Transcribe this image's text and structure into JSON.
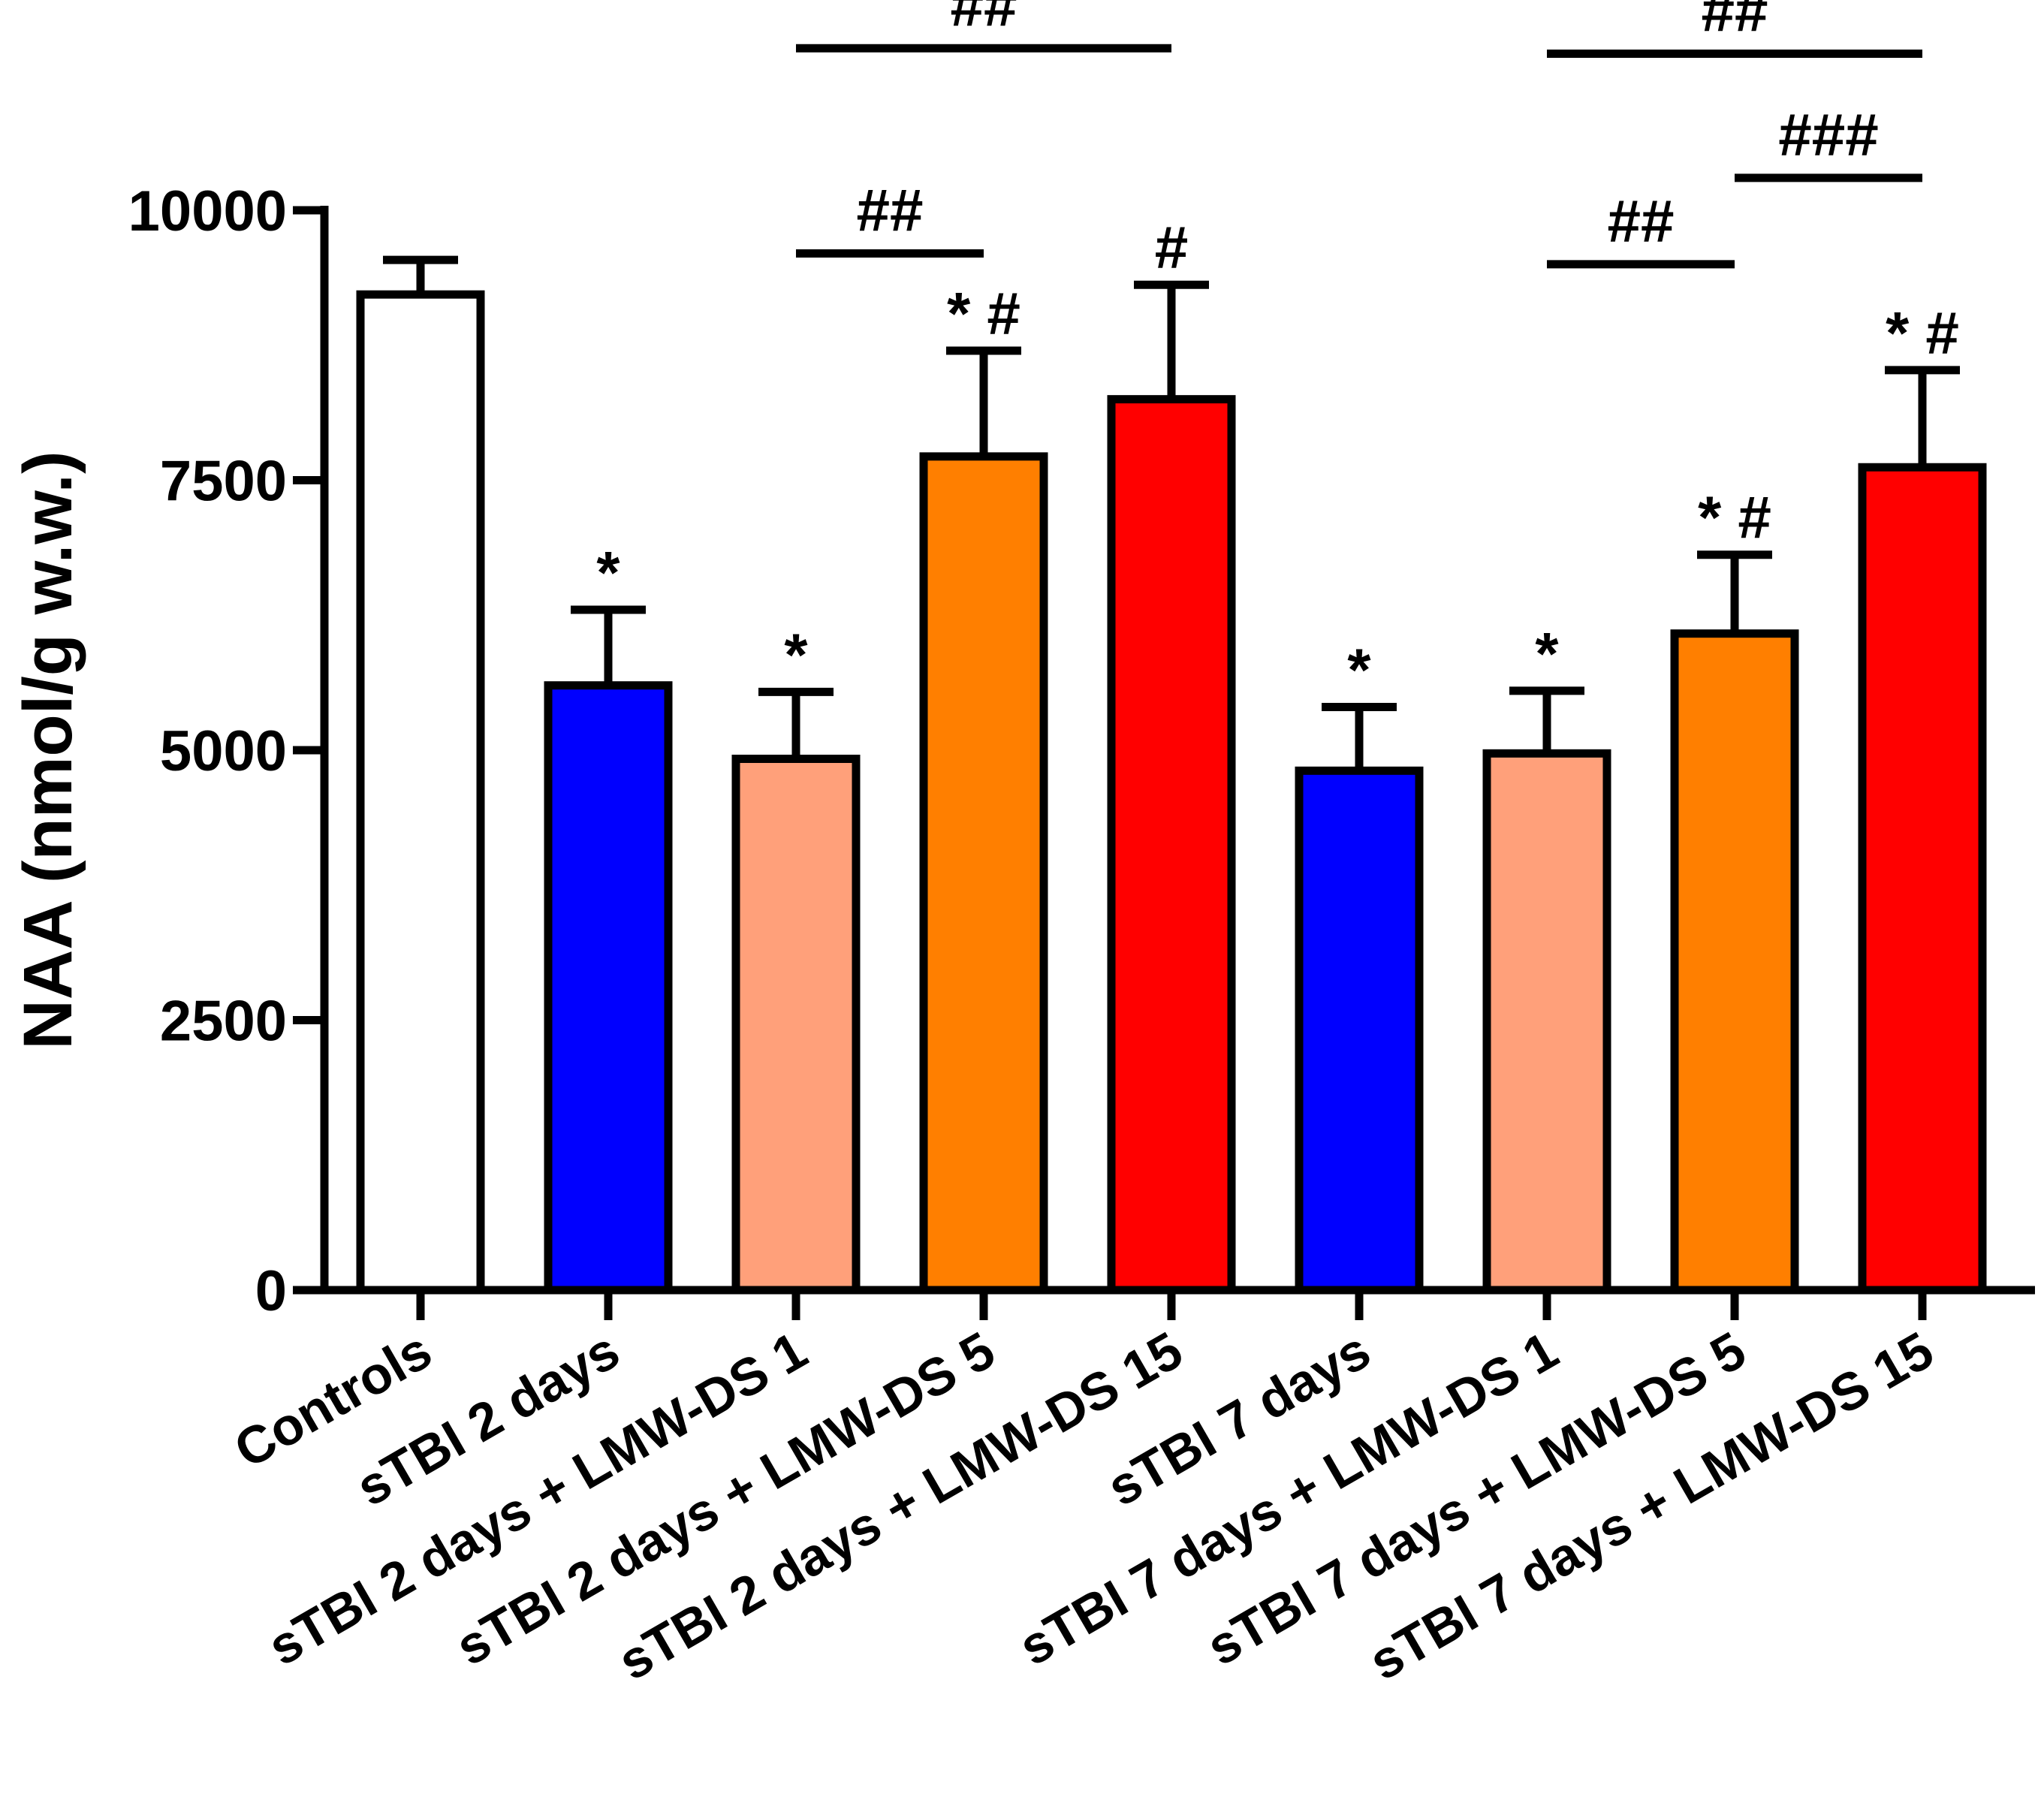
{
  "chart_data": {
    "type": "bar",
    "title": "",
    "xlabel": "",
    "ylabel": "NAA (nmol/g w.w.)",
    "ylim": [
      0,
      10000
    ],
    "yticks": [
      0,
      2500,
      5000,
      7500,
      10000
    ],
    "grid": false,
    "categories": [
      "Controls",
      "sTBI 2 days",
      "sTBI 2 days + LMW-DS 1",
      "sTBI 2 days + LMW-DS 5",
      "sTBI 2 days + LMW-DS 15",
      "sTBI 7 days",
      "sTBI 7 days + LMW-DS 1",
      "sTBI 7 days + LMW-DS 5",
      "sTBI 7 days + LMW-DS 15"
    ],
    "values": [
      9220,
      5600,
      4920,
      7720,
      8250,
      4810,
      4970,
      6080,
      7620
    ],
    "errors": [
      320,
      700,
      620,
      980,
      1060,
      590,
      580,
      730,
      900
    ],
    "colors": [
      "#FFFFFF",
      "#0000FF",
      "#FFA07A",
      "#FF7F00",
      "#FF0000",
      "#0000FF",
      "#FFA07A",
      "#FF7F00",
      "#FF0000"
    ],
    "markers": [
      "",
      "*",
      "*",
      "* #",
      "#",
      "*",
      "*",
      "* #",
      "* #"
    ],
    "brackets": [
      {
        "from": 2,
        "to": 4,
        "label": "##",
        "y": 11500
      },
      {
        "from": 2,
        "to": 3,
        "label": "##",
        "y": 9600
      },
      {
        "from": 6,
        "to": 8,
        "label": "##",
        "y": 11450
      },
      {
        "from": 7,
        "to": 8,
        "label": "###",
        "y": 10300
      },
      {
        "from": 6,
        "to": 7,
        "label": "##",
        "y": 9500
      }
    ]
  }
}
